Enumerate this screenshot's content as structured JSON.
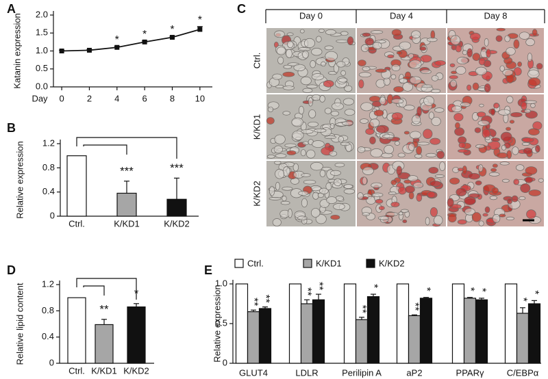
{
  "chart_data": [
    {
      "type": "line",
      "panel": "A",
      "ylabel": "Katanin expression",
      "xlabel": "Day",
      "x": [
        0,
        2,
        4,
        6,
        8,
        10
      ],
      "values": [
        1.0,
        1.02,
        1.1,
        1.25,
        1.38,
        1.6
      ],
      "errors": [
        0.02,
        0.02,
        0.03,
        0.03,
        0.03,
        0.08
      ],
      "significance": [
        null,
        null,
        "*",
        "*",
        "*",
        "*"
      ],
      "color": "#111111",
      "xlim": [
        -0.6,
        10.9
      ],
      "xticks": [
        0,
        2,
        4,
        6,
        8,
        10
      ],
      "ylim": [
        0,
        2
      ],
      "yticks": [
        {
          "value": 0,
          "label": "0.0"
        },
        {
          "value": 0.5,
          "label": "0.5"
        },
        {
          "value": 1,
          "label": "1.0"
        },
        {
          "value": 1.5,
          "label": "1.5"
        },
        {
          "value": 2,
          "label": "2.0"
        }
      ]
    },
    {
      "type": "bar",
      "panel": "B",
      "ylabel": "Relative expression",
      "categories": [
        "Ctrl.",
        "K/KD1",
        "K/KD2"
      ],
      "values": [
        1.0,
        0.38,
        0.28
      ],
      "errors": [
        0,
        0.2,
        0.35
      ],
      "significance": [
        null,
        "***",
        "***"
      ],
      "colors": [
        "#ffffff",
        "#a6a6a6",
        "#111111"
      ],
      "ylim": [
        0,
        1.2
      ],
      "yticks": [
        0,
        0.4,
        0.8,
        1.2
      ]
    },
    {
      "type": "image-grid",
      "panel": "C",
      "columns": [
        "Day 0",
        "Day 4",
        "Day 8"
      ],
      "rows": [
        "Ctrl.",
        "K/KD1",
        "K/KD2"
      ]
    },
    {
      "type": "bar",
      "panel": "D",
      "ylabel": "Relative lipid content",
      "categories": [
        "Ctrl.",
        "K/KD1",
        "K/KD2"
      ],
      "values": [
        1.0,
        0.59,
        0.86
      ],
      "errors": [
        0,
        0.08,
        0.05
      ],
      "significance": [
        null,
        "**",
        "*"
      ],
      "colors": [
        "#ffffff",
        "#a6a6a6",
        "#111111"
      ],
      "ylim": [
        0,
        1.2
      ],
      "yticks": [
        0,
        0.4,
        0.8,
        1.2
      ]
    },
    {
      "type": "grouped-bar",
      "panel": "E",
      "ylabel": "Relative expression",
      "categories": [
        "GLUT4",
        "LDLR",
        "Perilipin A",
        "aP2",
        "PPARγ",
        "C/EBPα"
      ],
      "series": [
        {
          "name": "Ctrl.",
          "color": "#ffffff",
          "values": [
            1,
            1,
            1,
            1,
            1,
            1
          ],
          "errors": [
            0,
            0,
            0,
            0,
            0,
            0
          ],
          "significance": [
            null,
            null,
            null,
            null,
            null,
            null
          ]
        },
        {
          "name": "K/KD1",
          "color": "#a6a6a6",
          "values": [
            0.65,
            0.75,
            0.55,
            0.6,
            0.82,
            0.63
          ],
          "errors": [
            0.02,
            0.05,
            0.03,
            0.01,
            0.01,
            0.07
          ],
          "significance": [
            "**",
            "**",
            "**",
            "**",
            "*",
            "*"
          ]
        },
        {
          "name": "K/KD2",
          "color": "#111111",
          "values": [
            0.69,
            0.8,
            0.84,
            0.82,
            0.8,
            0.75
          ],
          "errors": [
            0.02,
            0.07,
            0.03,
            0.01,
            0.02,
            0.04
          ],
          "significance": [
            "**",
            "**",
            "*",
            "*",
            "*",
            "*"
          ]
        }
      ],
      "ylim": [
        0,
        1
      ],
      "yticks": [
        0,
        0.5,
        {
          "value": 1,
          "label": "1.0"
        }
      ],
      "legend": "top"
    }
  ]
}
